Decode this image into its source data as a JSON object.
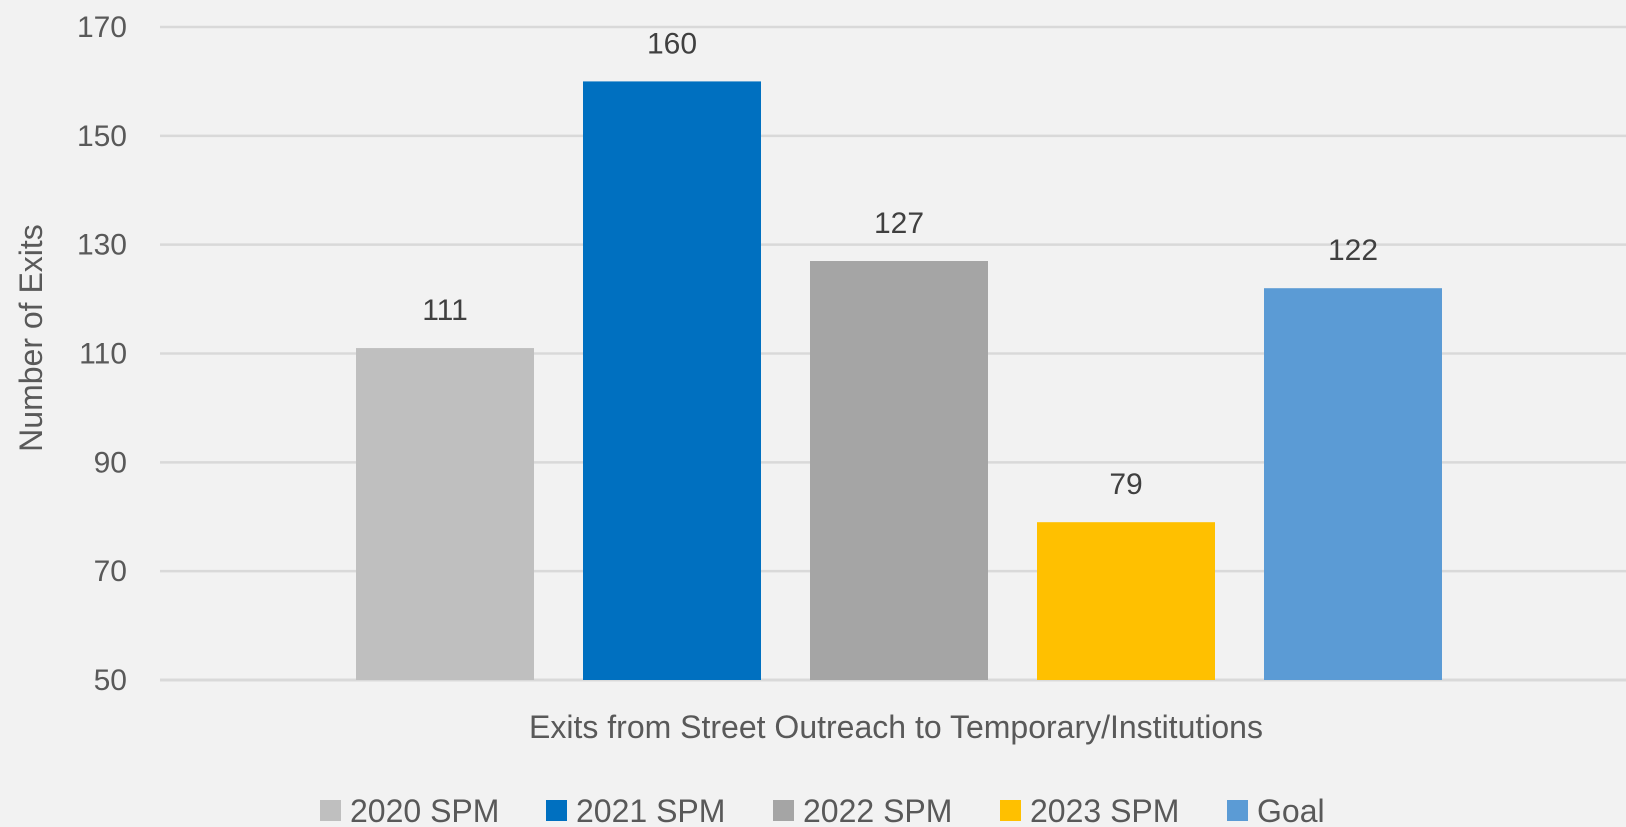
{
  "chart_data": {
    "type": "bar",
    "categories": [
      "Exits from Street Outreach to Temporary/Institutions"
    ],
    "series": [
      {
        "name": "2020 SPM",
        "values": [
          111
        ],
        "color": "#bfbfbf"
      },
      {
        "name": "2021 SPM",
        "values": [
          160
        ],
        "color": "#0070c0"
      },
      {
        "name": "2022 SPM",
        "values": [
          127
        ],
        "color": "#a5a5a5"
      },
      {
        "name": "2023 SPM",
        "values": [
          79
        ],
        "color": "#ffc000"
      },
      {
        "name": "Goal",
        "values": [
          122
        ],
        "color": "#5b9bd5"
      }
    ],
    "title": "",
    "xlabel": "Exits from Street Outreach to Temporary/Institutions",
    "ylabel": "Number of Exits",
    "ylim": [
      50,
      170
    ],
    "yticks": [
      50,
      70,
      90,
      110,
      130,
      150,
      170
    ],
    "grid": true,
    "legend_position": "bottom",
    "background": "#f2f2f2",
    "grid_color": "#d9d9d9"
  }
}
